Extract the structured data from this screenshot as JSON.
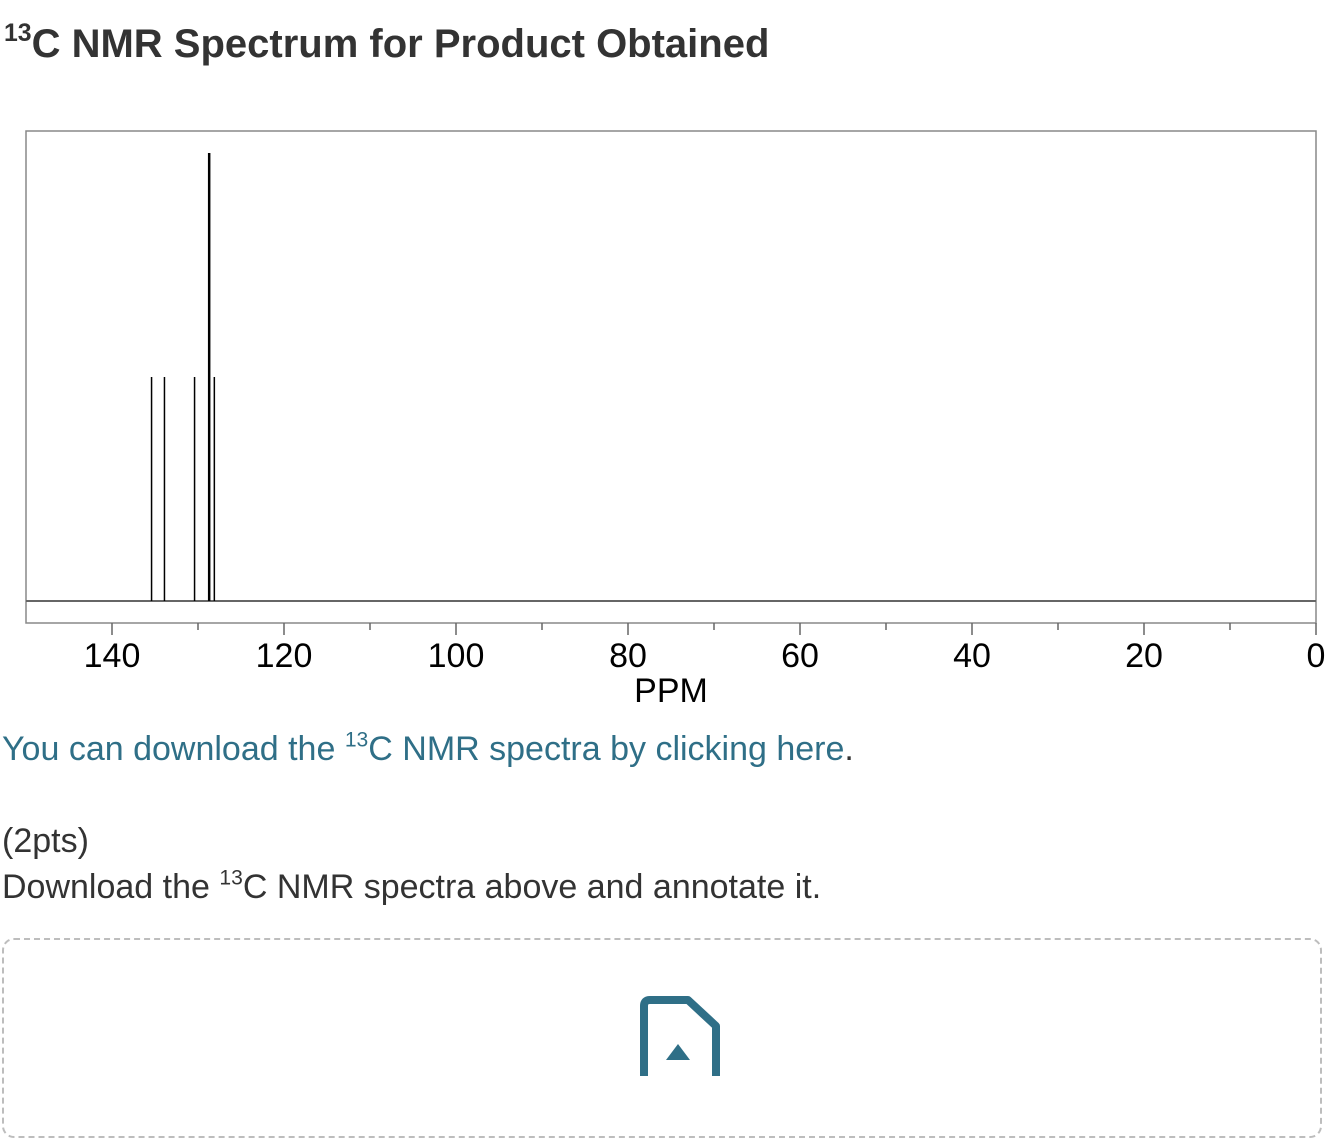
{
  "header": {
    "title_sup": "13",
    "title_text": "C NMR Spectrum for Product Obtained"
  },
  "chart_data": {
    "type": "bar",
    "xlabel": "PPM",
    "xlim": [
      150,
      0
    ],
    "x_ticks_major": [
      140,
      120,
      100,
      80,
      60,
      40,
      20,
      0
    ],
    "x_tick_labels": [
      "140",
      "120",
      "100",
      "80",
      "60",
      "40",
      "20",
      "0"
    ],
    "x_ticks_minor": [
      130,
      110,
      90,
      70,
      50,
      30,
      10
    ],
    "peaks": [
      {
        "ppm": 135.4,
        "intensity": 0.5
      },
      {
        "ppm": 133.9,
        "intensity": 0.5
      },
      {
        "ppm": 130.4,
        "intensity": 0.5
      },
      {
        "ppm": 128.7,
        "intensity": 1.0
      },
      {
        "ppm": 128.1,
        "intensity": 0.5
      }
    ],
    "ylim": [
      0,
      1.1
    ]
  },
  "links": {
    "download_pre": "You can download the ",
    "download_sup": "13",
    "download_post": "C NMR spectra by clicking here",
    "download_period": "."
  },
  "question": {
    "points": "(2pts)",
    "text_pre": "Download the ",
    "text_sup": "13",
    "text_post": "C NMR spectra above and annotate it."
  },
  "upload": {
    "icon": "file-upload-icon",
    "accent": "#2f6f87"
  }
}
